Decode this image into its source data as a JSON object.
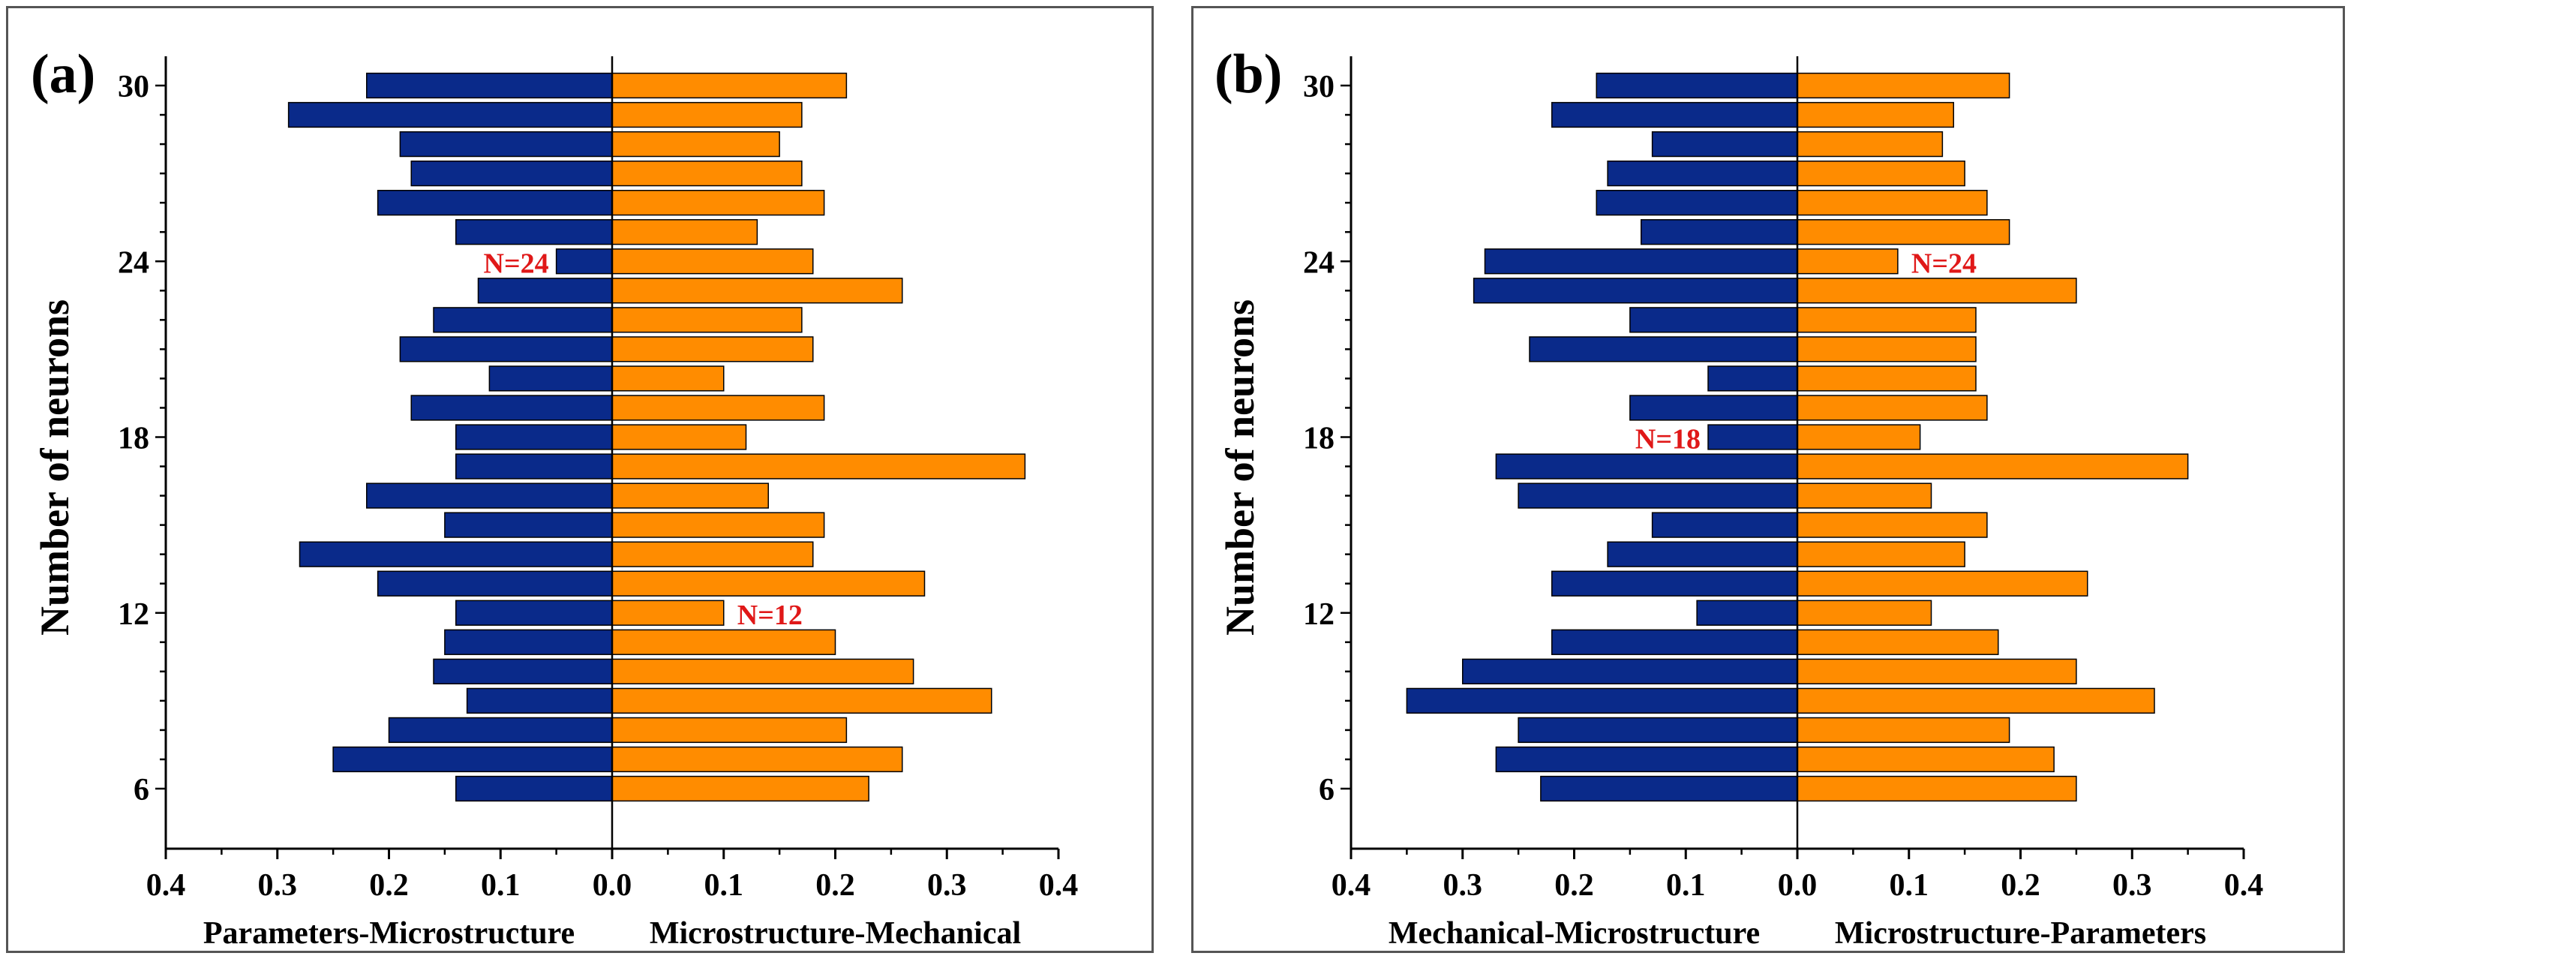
{
  "colors": {
    "left": "#0a2a8a",
    "right": "#ff8c00",
    "annotation": "#e01818",
    "axis": "#000000"
  },
  "chart_data": [
    {
      "type": "bar",
      "orientation": "diverging-horizontal",
      "panel_label": "(a)",
      "ylabel": "Number of neurons",
      "y_ticks": [
        "6",
        "12",
        "18",
        "24",
        "30"
      ],
      "x_ticks": [
        "0.4",
        "0.3",
        "0.2",
        "0.1",
        "0.0",
        "0.1",
        "0.2",
        "0.3",
        "0.4"
      ],
      "xlim": [
        -0.4,
        0.4
      ],
      "left_label": "Parameters-Microstructure",
      "right_label": "Microstructure-Mechanical",
      "neurons": [
        6,
        7,
        8,
        9,
        10,
        11,
        12,
        13,
        14,
        15,
        16,
        17,
        18,
        19,
        20,
        21,
        22,
        23,
        24,
        25,
        26,
        27,
        28,
        29,
        30
      ],
      "series": [
        {
          "name": "Parameters-Microstructure",
          "side": "left",
          "values": [
            0.14,
            0.25,
            0.2,
            0.13,
            0.16,
            0.15,
            0.14,
            0.21,
            0.28,
            0.15,
            0.22,
            0.14,
            0.14,
            0.18,
            0.11,
            0.19,
            0.16,
            0.12,
            0.05,
            0.14,
            0.21,
            0.18,
            0.19,
            0.29,
            0.22
          ]
        },
        {
          "name": "Microstructure-Mechanical",
          "side": "right",
          "values": [
            0.23,
            0.26,
            0.21,
            0.34,
            0.27,
            0.2,
            0.1,
            0.28,
            0.18,
            0.19,
            0.14,
            0.37,
            0.12,
            0.19,
            0.1,
            0.18,
            0.17,
            0.26,
            0.18,
            0.13,
            0.19,
            0.17,
            0.15,
            0.17,
            0.21
          ]
        }
      ],
      "annotations": [
        {
          "text": "N=24",
          "neuron": 24,
          "side": "left"
        },
        {
          "text": "N=12",
          "neuron": 12,
          "side": "right"
        }
      ]
    },
    {
      "type": "bar",
      "orientation": "diverging-horizontal",
      "panel_label": "(b)",
      "ylabel": "Number of neurons",
      "y_ticks": [
        "6",
        "12",
        "18",
        "24",
        "30"
      ],
      "x_ticks": [
        "0.4",
        "0.3",
        "0.2",
        "0.1",
        "0.0",
        "0.1",
        "0.2",
        "0.3",
        "0.4"
      ],
      "xlim": [
        -0.4,
        0.4
      ],
      "left_label": "Mechanical-Microstructure",
      "right_label": "Microstructure-Parameters",
      "neurons": [
        6,
        7,
        8,
        9,
        10,
        11,
        12,
        13,
        14,
        15,
        16,
        17,
        18,
        19,
        20,
        21,
        22,
        23,
        24,
        25,
        26,
        27,
        28,
        29,
        30
      ],
      "series": [
        {
          "name": "Mechanical-Microstructure",
          "side": "left",
          "values": [
            0.23,
            0.27,
            0.25,
            0.35,
            0.3,
            0.22,
            0.09,
            0.22,
            0.17,
            0.13,
            0.25,
            0.27,
            0.08,
            0.15,
            0.08,
            0.24,
            0.15,
            0.29,
            0.28,
            0.14,
            0.18,
            0.17,
            0.13,
            0.22,
            0.18
          ]
        },
        {
          "name": "Microstructure-Parameters",
          "side": "right",
          "values": [
            0.25,
            0.23,
            0.19,
            0.32,
            0.25,
            0.18,
            0.12,
            0.26,
            0.15,
            0.17,
            0.12,
            0.35,
            0.11,
            0.17,
            0.16,
            0.16,
            0.16,
            0.25,
            0.09,
            0.19,
            0.17,
            0.15,
            0.13,
            0.14,
            0.19
          ]
        }
      ],
      "annotations": [
        {
          "text": "N=24",
          "neuron": 24,
          "side": "right"
        },
        {
          "text": "N=18",
          "neuron": 18,
          "side": "left"
        }
      ]
    }
  ]
}
